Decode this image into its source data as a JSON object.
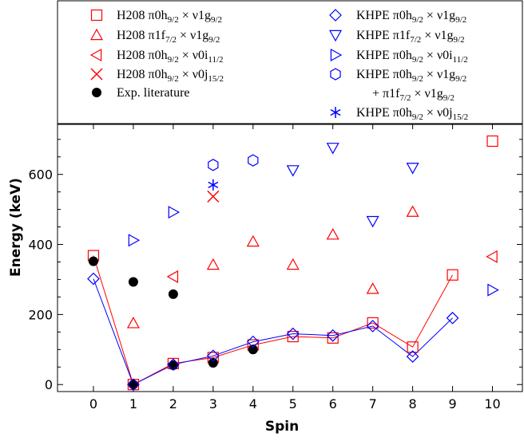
{
  "chart_data": {
    "type": "scatter",
    "title": "",
    "xlabel": "Spin",
    "ylabel": "Energy (keV)",
    "xlim": [
      -0.9,
      10.75
    ],
    "ylim": [
      -20,
      745
    ],
    "xticks": [
      0,
      1,
      2,
      3,
      4,
      5,
      6,
      7,
      8,
      9,
      10
    ],
    "yticks": [
      0,
      200,
      400,
      600
    ],
    "grid": false,
    "legend_position": "top (above plot, two columns)",
    "colors": {
      "red": "#ff0000",
      "blue": "#0000ff",
      "black": "#000000"
    },
    "series": [
      {
        "key": "h208_h9g9",
        "name": "H208 π0h9/2 × ν1g9/2",
        "legend_html": "H208 π0h<tspan baseline-shift=\"-4\" font-size=\"11\">9/2</tspan> × ν1g<tspan baseline-shift=\"-4\" font-size=\"11\">9/2</tspan>",
        "marker": "square",
        "color": "#ff0000",
        "connected": true,
        "x": [
          0,
          1,
          2,
          3,
          4,
          5,
          6,
          7,
          8,
          9,
          10
        ],
        "y": [
          368,
          0,
          60,
          77,
          113,
          137,
          133,
          176,
          107,
          313,
          695
        ],
        "connect_count": 10
      },
      {
        "key": "h208_f7g9",
        "name": "H208 π1f7/2 × ν1g9/2",
        "legend_html": "H208 π1f<tspan baseline-shift=\"-4\" font-size=\"11\">7/2</tspan> × ν1g<tspan baseline-shift=\"-4\" font-size=\"11\">9/2</tspan>",
        "marker": "triangle-up",
        "color": "#ff0000",
        "connected": false,
        "x": [
          1,
          3,
          4,
          5,
          6,
          7,
          8
        ],
        "y": [
          175,
          342,
          408,
          342,
          428,
          273,
          493
        ]
      },
      {
        "key": "h208_h9i11",
        "name": "H208 π0h9/2 × ν0i11/2",
        "legend_html": "H208 π0h<tspan baseline-shift=\"-4\" font-size=\"11\">9/2</tspan> × ν0i<tspan baseline-shift=\"-4\" font-size=\"11\">11/2</tspan>",
        "marker": "triangle-left",
        "color": "#ff0000",
        "connected": false,
        "x": [
          2,
          10
        ],
        "y": [
          308,
          365
        ]
      },
      {
        "key": "h208_h9j15",
        "name": "H208 π0h9/2 × ν0j15/2",
        "legend_html": "H208 π0h<tspan baseline-shift=\"-4\" font-size=\"11\">9/2</tspan> × ν0j<tspan baseline-shift=\"-4\" font-size=\"11\">15/2</tspan>",
        "marker": "x",
        "color": "#ff0000",
        "connected": false,
        "x": [
          3
        ],
        "y": [
          537
        ]
      },
      {
        "key": "exp",
        "name": "Exp. literature",
        "legend_html": "Exp. literature",
        "marker": "circle-filled",
        "color": "#000000",
        "connected": false,
        "x": [
          0,
          1,
          1,
          2,
          2,
          3,
          4
        ],
        "y": [
          352,
          293,
          0,
          258,
          55,
          62,
          100
        ]
      },
      {
        "key": "kh_h9g9",
        "name": "KHPE π0h9/2 × ν1g9/2",
        "legend_html": "KHPE π0h<tspan baseline-shift=\"-4\" font-size=\"11\">9/2</tspan> × ν1g<tspan baseline-shift=\"-4\" font-size=\"11\">9/2</tspan>",
        "marker": "diamond",
        "color": "#0000ff",
        "connected": true,
        "x": [
          0,
          1,
          2,
          3,
          4,
          5,
          6,
          7,
          8,
          9
        ],
        "y": [
          302,
          0,
          57,
          82,
          122,
          145,
          140,
          167,
          80,
          190
        ],
        "connect_count": 10
      },
      {
        "key": "kh_f7g9",
        "name": "KHPE π1f7/2 × ν1g9/2",
        "legend_html": "KHPE π1f<tspan baseline-shift=\"-4\" font-size=\"11\">7/2</tspan> × ν1g<tspan baseline-shift=\"-4\" font-size=\"11\">9/2</tspan>",
        "marker": "triangle-down",
        "color": "#0000ff",
        "connected": false,
        "x": [
          5,
          6,
          7,
          8
        ],
        "y": [
          612,
          676,
          467,
          619
        ]
      },
      {
        "key": "kh_h9i11",
        "name": "KHPE π0h9/2 × ν0i11/2",
        "legend_html": "KHPE π0h<tspan baseline-shift=\"-4\" font-size=\"11\">9/2</tspan> × ν0i<tspan baseline-shift=\"-4\" font-size=\"11\">11/2</tspan>",
        "marker": "triangle-right",
        "color": "#0000ff",
        "connected": false,
        "x": [
          1,
          2,
          10
        ],
        "y": [
          412,
          492,
          270
        ]
      },
      {
        "key": "kh_mix",
        "name": "KHPE π0h9/2 × ν1g9/2 + π1f7/2 × ν1g9/2",
        "legend_html": "KHPE π0h<tspan baseline-shift=\"-4\" font-size=\"11\">9/2</tspan> × ν1g<tspan baseline-shift=\"-4\" font-size=\"11\">9/2</tspan>",
        "legend_html2": "+ π1f<tspan baseline-shift=\"-4\" font-size=\"11\">7/2</tspan> × ν1g<tspan baseline-shift=\"-4\" font-size=\"11\">9/2</tspan>",
        "marker": "hexagon",
        "color": "#0000ff",
        "connected": false,
        "x": [
          3,
          4
        ],
        "y": [
          627,
          640
        ]
      },
      {
        "key": "kh_h9j15",
        "name": "KHPE π0h9/2 × ν0j15/2",
        "legend_html": "KHPE π0h<tspan baseline-shift=\"-4\" font-size=\"11\">9/2</tspan> × ν0j<tspan baseline-shift=\"-4\" font-size=\"11\">15/2</tspan>",
        "marker": "asterisk",
        "color": "#0000ff",
        "connected": false,
        "x": [
          3
        ],
        "y": [
          570
        ]
      }
    ]
  }
}
